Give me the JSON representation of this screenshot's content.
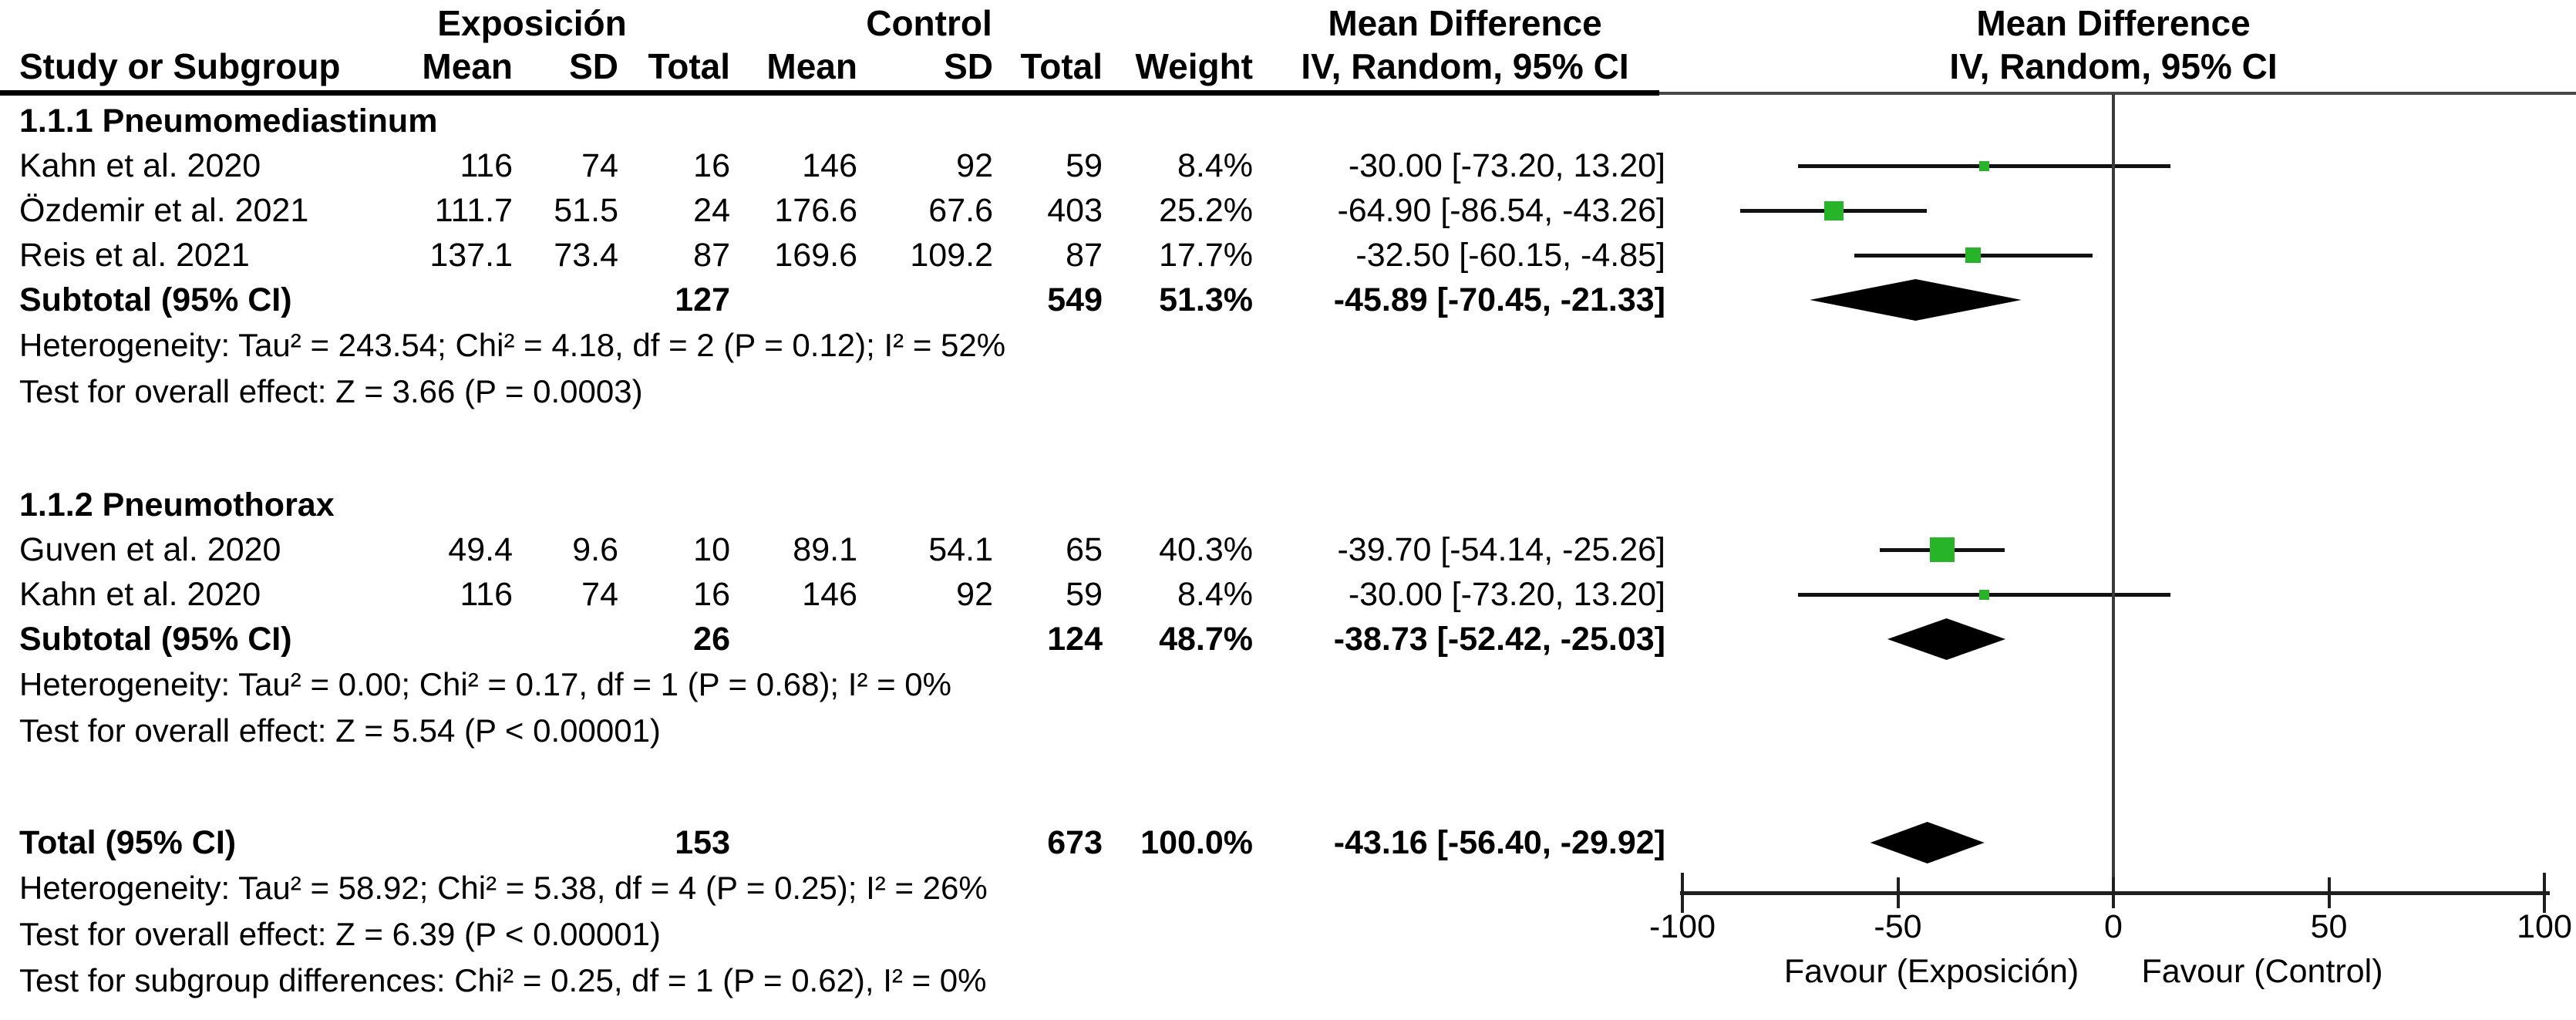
{
  "header": {
    "exp_group": "Exposición",
    "ctl_group": "Control",
    "md_text_col": "Mean Difference",
    "md_plot_col": "Mean Difference",
    "study": "Study or Subgroup",
    "mean": "Mean",
    "sd": "SD",
    "total": "Total",
    "weight": "Weight",
    "ci_method_text": "IV, Random, 95% CI",
    "ci_method_plot": "IV, Random, 95% CI"
  },
  "chart_data": {
    "type": "scatter",
    "subtype": "forest_plot_meta_analysis",
    "effect_measure": "Mean Difference IV, Random, 95% CI",
    "marker_color": "#28B428",
    "pooled_color": "#000000",
    "x_axis": {
      "min": -100,
      "max": 100,
      "ticks": [
        "-100",
        "-50",
        "0",
        "50",
        "100"
      ],
      "label_left": "Favour (Exposición)",
      "label_right": "Favour (Control)"
    },
    "groups": [
      {
        "label": "1.1.1 Pneumomediastinum",
        "studies": [
          {
            "name": "Kahn et al. 2020",
            "exp": {
              "mean": "116",
              "sd": "74",
              "total": "16"
            },
            "ctl": {
              "mean": "146",
              "sd": "92",
              "total": "59"
            },
            "weight": "8.4%",
            "weight_pct": 8.4,
            "md": -30.0,
            "ci_lo": -73.2,
            "ci_hi": 13.2,
            "ci_text": "-30.00 [-73.20, 13.20]"
          },
          {
            "name": "Özdemir et al. 2021",
            "exp": {
              "mean": "111.7",
              "sd": "51.5",
              "total": "24"
            },
            "ctl": {
              "mean": "176.6",
              "sd": "67.6",
              "total": "403"
            },
            "weight": "25.2%",
            "weight_pct": 25.2,
            "md": -64.9,
            "ci_lo": -86.54,
            "ci_hi": -43.26,
            "ci_text": "-64.90 [-86.54, -43.26]"
          },
          {
            "name": "Reis et al. 2021",
            "exp": {
              "mean": "137.1",
              "sd": "73.4",
              "total": "87"
            },
            "ctl": {
              "mean": "169.6",
              "sd": "109.2",
              "total": "87"
            },
            "weight": "17.7%",
            "weight_pct": 17.7,
            "md": -32.5,
            "ci_lo": -60.15,
            "ci_hi": -4.85,
            "ci_text": "-32.50 [-60.15, -4.85]"
          }
        ],
        "subtotal": {
          "label": "Subtotal (95% CI)",
          "exp_total": "127",
          "ctl_total": "549",
          "weight": "51.3%",
          "md": -45.89,
          "ci_lo": -70.45,
          "ci_hi": -21.33,
          "ci_text": "-45.89 [-70.45, -21.33]"
        },
        "heterogeneity": "Heterogeneity: Tau² = 243.54; Chi² = 4.18, df = 2 (P = 0.12); I² = 52%",
        "overall_effect": "Test for overall effect: Z = 3.66 (P = 0.0003)"
      },
      {
        "label": "1.1.2 Pneumothorax",
        "studies": [
          {
            "name": "Guven et al. 2020",
            "exp": {
              "mean": "49.4",
              "sd": "9.6",
              "total": "10"
            },
            "ctl": {
              "mean": "89.1",
              "sd": "54.1",
              "total": "65"
            },
            "weight": "40.3%",
            "weight_pct": 40.3,
            "md": -39.7,
            "ci_lo": -54.14,
            "ci_hi": -25.26,
            "ci_text": "-39.70 [-54.14, -25.26]"
          },
          {
            "name": "Kahn et al. 2020",
            "exp": {
              "mean": "116",
              "sd": "74",
              "total": "16"
            },
            "ctl": {
              "mean": "146",
              "sd": "92",
              "total": "59"
            },
            "weight": "8.4%",
            "weight_pct": 8.4,
            "md": -30.0,
            "ci_lo": -73.2,
            "ci_hi": 13.2,
            "ci_text": "-30.00 [-73.20, 13.20]"
          }
        ],
        "subtotal": {
          "label": "Subtotal (95% CI)",
          "exp_total": "26",
          "ctl_total": "124",
          "weight": "48.7%",
          "md": -38.73,
          "ci_lo": -52.42,
          "ci_hi": -25.03,
          "ci_text": "-38.73 [-52.42, -25.03]"
        },
        "heterogeneity": "Heterogeneity: Tau² = 0.00; Chi² = 0.17, df = 1 (P = 0.68); I² = 0%",
        "overall_effect": "Test for overall effect: Z = 5.54 (P < 0.00001)"
      }
    ],
    "total": {
      "label": "Total (95% CI)",
      "exp_total": "153",
      "ctl_total": "673",
      "weight": "100.0%",
      "md": -43.16,
      "ci_lo": -56.4,
      "ci_hi": -29.92,
      "ci_text": "-43.16 [-56.40, -29.92]"
    },
    "footer": [
      "Heterogeneity: Tau² = 58.92; Chi² = 5.38, df = 4 (P = 0.25); I² = 26%",
      "Test for overall effect: Z = 6.39 (P < 0.00001)",
      "Test for subgroup differences: Chi² = 0.25, df = 1 (P = 0.62), I² = 0%"
    ]
  }
}
